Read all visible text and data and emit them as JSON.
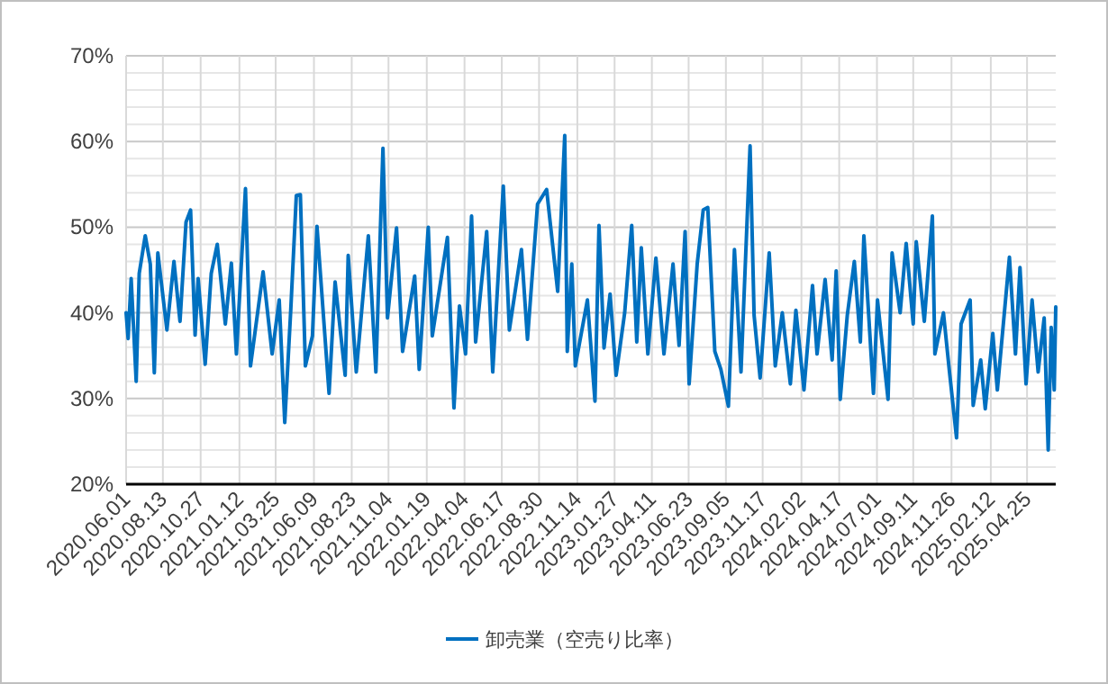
{
  "chart_data": {
    "type": "line",
    "legend": "bottom",
    "grid": true,
    "marker": "none",
    "line_style": "solid",
    "ylim": [
      20,
      70
    ],
    "yticks": [
      {
        "value": 20,
        "label": "20%"
      },
      {
        "value": 22,
        "label": null
      },
      {
        "value": 24,
        "label": null
      },
      {
        "value": 26,
        "label": null
      },
      {
        "value": 28,
        "label": null
      },
      {
        "value": 30,
        "label": "30%"
      },
      {
        "value": 32,
        "label": null
      },
      {
        "value": 34,
        "label": null
      },
      {
        "value": 36,
        "label": null
      },
      {
        "value": 38,
        "label": null
      },
      {
        "value": 40,
        "label": "40%"
      },
      {
        "value": 42,
        "label": null
      },
      {
        "value": 44,
        "label": null
      },
      {
        "value": 46,
        "label": null
      },
      {
        "value": 48,
        "label": null
      },
      {
        "value": 50,
        "label": "50%"
      },
      {
        "value": 52,
        "label": null
      },
      {
        "value": 54,
        "label": null
      },
      {
        "value": 56,
        "label": null
      },
      {
        "value": 58,
        "label": null
      },
      {
        "value": 60,
        "label": "60%"
      },
      {
        "value": 62,
        "label": null
      },
      {
        "value": 64,
        "label": null
      },
      {
        "value": 66,
        "label": null
      },
      {
        "value": 68,
        "label": null
      },
      {
        "value": 70,
        "label": "70%"
      }
    ],
    "xlim": [
      "2020-06-01",
      "2025-06-21"
    ],
    "xticks": [
      {
        "value": "2020-06-01",
        "label": "2020.06.01"
      },
      {
        "value": "2020-08-13",
        "label": "2020.08.13"
      },
      {
        "value": "2020-10-27",
        "label": "2020.10.27"
      },
      {
        "value": "2021-01-12",
        "label": "2021.01.12"
      },
      {
        "value": "2021-03-25",
        "label": "2021.03.25"
      },
      {
        "value": "2021-06-09",
        "label": "2021.06.09"
      },
      {
        "value": "2021-08-23",
        "label": "2021.08.23"
      },
      {
        "value": "2021-11-04",
        "label": "2021.11.04"
      },
      {
        "value": "2022-01-19",
        "label": "2022.01.19"
      },
      {
        "value": "2022-04-04",
        "label": "2022.04.04"
      },
      {
        "value": "2022-06-17",
        "label": "2022.06.17"
      },
      {
        "value": "2022-08-30",
        "label": "2022.08.30"
      },
      {
        "value": "2022-11-14",
        "label": "2022.11.14"
      },
      {
        "value": "2023-01-27",
        "label": "2023.01.27"
      },
      {
        "value": "2023-04-11",
        "label": "2023.04.11"
      },
      {
        "value": "2023-06-23",
        "label": "2023.06.23"
      },
      {
        "value": "2023-09-05",
        "label": "2023.09.05"
      },
      {
        "value": "2023-11-17",
        "label": "2023.11.17"
      },
      {
        "value": "2024-02-02",
        "label": "2024.02.02"
      },
      {
        "value": "2024-04-17",
        "label": "2024.04.17"
      },
      {
        "value": "2024-07-01",
        "label": "2024.07.01"
      },
      {
        "value": "2024-09-11",
        "label": "2024.09.11"
      },
      {
        "value": "2024-11-26",
        "label": "2024.11.26"
      },
      {
        "value": "2025-02-12",
        "label": "2025.02.12"
      },
      {
        "value": "2025-04-25",
        "label": "2025.04.25"
      }
    ],
    "series": [
      {
        "name": "卸売業（空売り比率）",
        "color": "#0070c0",
        "x": [
          "2020-06-01",
          "2020-06-05",
          "2020-06-11",
          "2020-06-21",
          "2020-06-27",
          "2020-07-09",
          "2020-07-19",
          "2020-07-27",
          "2020-08-03",
          "2020-08-21",
          "2020-09-04",
          "2020-09-16",
          "2020-09-28",
          "2020-10-07",
          "2020-10-16",
          "2020-10-22",
          "2020-11-05",
          "2020-11-17",
          "2020-11-29",
          "2020-12-15",
          "2020-12-27",
          "2021-01-06",
          "2021-01-24",
          "2021-02-03",
          "2021-02-28",
          "2021-03-18",
          "2021-04-01",
          "2021-04-12",
          "2021-04-24",
          "2021-05-05",
          "2021-05-13",
          "2021-05-23",
          "2021-06-06",
          "2021-06-15",
          "2021-07-09",
          "2021-07-21",
          "2021-08-10",
          "2021-08-16",
          "2021-09-01",
          "2021-09-25",
          "2021-10-10",
          "2021-10-24",
          "2021-11-02",
          "2021-11-20",
          "2021-12-02",
          "2021-12-26",
          "2022-01-04",
          "2022-01-22",
          "2022-01-30",
          "2022-03-01",
          "2022-03-14",
          "2022-03-25",
          "2022-04-06",
          "2022-04-18",
          "2022-04-26",
          "2022-05-18",
          "2022-05-30",
          "2022-06-20",
          "2022-07-02",
          "2022-07-26",
          "2022-08-07",
          "2022-08-27",
          "2022-09-14",
          "2022-10-06",
          "2022-10-20",
          "2022-10-25",
          "2022-11-03",
          "2022-11-10",
          "2022-12-04",
          "2022-12-19",
          "2022-12-27",
          "2023-01-06",
          "2023-01-18",
          "2023-01-30",
          "2023-02-16",
          "2023-03-02",
          "2023-03-12",
          "2023-03-21",
          "2023-04-03",
          "2023-04-19",
          "2023-05-05",
          "2023-05-23",
          "2023-06-04",
          "2023-06-16",
          "2023-06-24",
          "2023-07-10",
          "2023-07-22",
          "2023-07-31",
          "2023-08-14",
          "2023-08-26",
          "2023-09-10",
          "2023-09-22",
          "2023-10-05",
          "2023-10-23",
          "2023-10-31",
          "2023-11-12",
          "2023-11-30",
          "2023-12-12",
          "2023-12-26",
          "2024-01-11",
          "2024-01-22",
          "2024-02-07",
          "2024-02-24",
          "2024-03-04",
          "2024-03-20",
          "2024-04-03",
          "2024-04-11",
          "2024-04-19",
          "2024-05-03",
          "2024-05-17",
          "2024-05-29",
          "2024-06-05",
          "2024-06-24",
          "2024-07-02",
          "2024-07-23",
          "2024-07-31",
          "2024-08-16",
          "2024-08-28",
          "2024-09-11",
          "2024-09-17",
          "2024-10-03",
          "2024-10-19",
          "2024-10-24",
          "2024-11-10",
          "2024-11-22",
          "2024-12-06",
          "2024-12-15",
          "2025-01-02",
          "2025-01-08",
          "2025-01-23",
          "2025-02-01",
          "2025-02-16",
          "2025-02-25",
          "2025-03-21",
          "2025-04-02",
          "2025-04-11",
          "2025-04-23",
          "2025-05-05",
          "2025-05-17",
          "2025-05-29",
          "2025-06-06",
          "2025-06-12",
          "2025-06-18",
          "2025-06-21"
        ],
        "values": [
          40,
          37,
          44,
          32,
          44.6,
          49,
          45.7,
          33,
          47,
          38,
          46,
          39,
          50.6,
          52,
          37.4,
          44,
          34,
          44.6,
          48,
          38.7,
          45.8,
          35.2,
          54.5,
          33.8,
          44.8,
          35.2,
          41.5,
          27.2,
          40.4,
          53.7,
          53.8,
          33.8,
          37.3,
          50.1,
          30.6,
          43.6,
          32.7,
          46.7,
          33.1,
          49,
          33.1,
          59.2,
          39.4,
          49.9,
          35.5,
          44.3,
          33.4,
          50,
          37.3,
          48.8,
          28.9,
          40.8,
          35.2,
          51.3,
          36.6,
          49.5,
          33.1,
          54.8,
          38,
          47.4,
          36.9,
          52.7,
          54.4,
          42.5,
          60.7,
          35.5,
          45.7,
          33.8,
          41.5,
          29.7,
          50.2,
          35.9,
          42.2,
          32.7,
          40,
          50.2,
          36.6,
          47.6,
          35.2,
          46.4,
          35.2,
          45.7,
          36.2,
          49.5,
          31.7,
          45.7,
          52,
          52.3,
          35.5,
          33.4,
          29.1,
          47.4,
          33.1,
          59.5,
          39.7,
          32.4,
          47,
          33.8,
          40,
          31.7,
          40.3,
          31,
          43.2,
          35.2,
          43.9,
          34.5,
          44.9,
          29.9,
          39.7,
          46,
          36.6,
          49,
          30.6,
          41.5,
          29.9,
          47,
          40,
          48.1,
          38.7,
          48.3,
          39,
          51.3,
          35.2,
          40,
          33.1,
          25.4,
          38.7,
          41.5,
          29.2,
          34.5,
          28.8,
          37.6,
          31,
          46.5,
          35.2,
          45.3,
          31.7,
          41.5,
          33.1,
          39.4,
          24,
          38.3,
          31,
          40.7
        ]
      }
    ]
  }
}
